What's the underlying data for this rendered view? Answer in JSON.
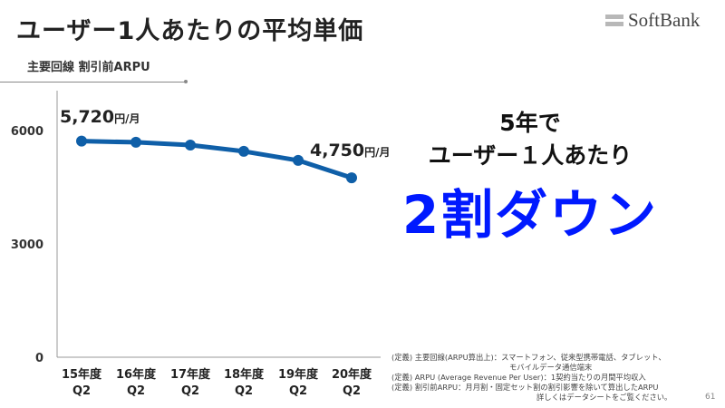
{
  "header": {
    "title": "ユーザー1人あたりの平均単価",
    "logo": "SoftBank",
    "subtitle": "主要回線 割引前ARPU"
  },
  "chart_data": {
    "type": "line",
    "title": "主要回線 割引前ARPU",
    "categories": [
      "15年度\nQ2",
      "16年度\nQ2",
      "17年度\nQ2",
      "18年度\nQ2",
      "19年度\nQ2",
      "20年度\nQ2"
    ],
    "category_lines": [
      [
        "15年度",
        "Q2"
      ],
      [
        "16年度",
        "Q2"
      ],
      [
        "17年度",
        "Q2"
      ],
      [
        "18年度",
        "Q2"
      ],
      [
        "19年度",
        "Q2"
      ],
      [
        "20年度",
        "Q2"
      ]
    ],
    "series": [
      {
        "name": "割引前ARPU",
        "values": [
          5720,
          5690,
          5615,
          5450,
          5210,
          4750
        ],
        "color": "#0f5fa8"
      }
    ],
    "yticks": [
      "0",
      "3000",
      "6000"
    ],
    "ylim": [
      0,
      7000
    ],
    "annotations": {
      "first_value": "5,720",
      "last_value": "4,750",
      "unit": "円/月"
    }
  },
  "headline": {
    "line1": "5年で",
    "line2": "ユーザー１人あたり",
    "line3": "2割ダウン"
  },
  "notes": [
    "(定義) 主要回線(ARPU算出上)：スマートフォン、従来型携帯電話、タブレット、",
    "モバイルデータ通信端末",
    "(定義) ARPU (Average Revenue Per User)：1契約当たりの月間平均収入",
    "(定義) 割引前ARPU：月月割・固定セット割の割引影響を除いて算出したARPU",
    "詳しくはデータシートをご覧ください。"
  ],
  "page_number": "61"
}
